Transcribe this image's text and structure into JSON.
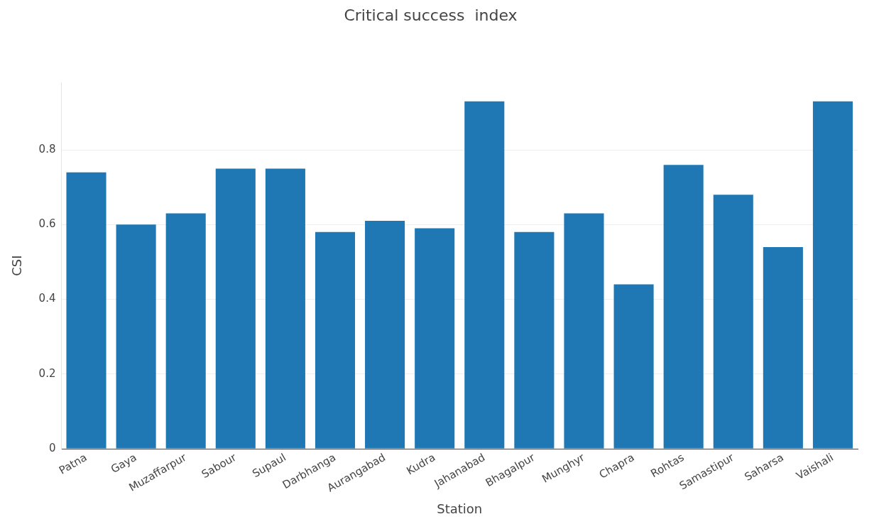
{
  "chart_data": {
    "type": "bar",
    "title": "Critical success  index",
    "xlabel": "Station",
    "ylabel": "CSI",
    "categories": [
      "Patna",
      "Gaya",
      "Muzaffarpur",
      "Sabour",
      "Supaul",
      "Darbhanga",
      "Aurangabad",
      "Kudra",
      "Jahanabad",
      "Bhagalpur",
      "Munghyr",
      "Chapra",
      "Rohtas",
      "Samastipur",
      "Saharsa",
      "Vaishali"
    ],
    "values": [
      0.74,
      0.6,
      0.63,
      0.75,
      0.75,
      0.58,
      0.61,
      0.59,
      0.93,
      0.58,
      0.63,
      0.44,
      0.76,
      0.68,
      0.54,
      0.93
    ],
    "color": "#1f77b4",
    "ylim": [
      0,
      0.98
    ],
    "yticks": [
      0,
      0.2,
      0.4,
      0.6,
      0.8
    ],
    "grid": "y",
    "legend": false
  }
}
